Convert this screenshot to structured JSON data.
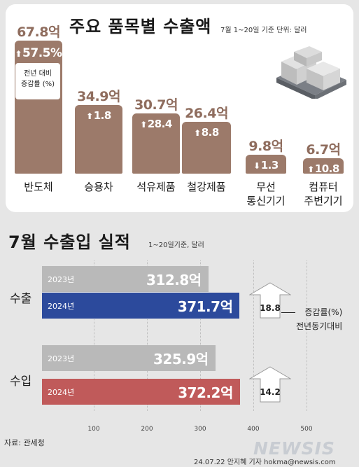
{
  "top_panel": {
    "title": "주요 품목별 수출액",
    "subtitle": "7월 1~20일 기준 단위: 달러",
    "note": "전년 대비\n증감률 (%)"
  },
  "bottom_panel": {
    "title": "7월 수출입 실적",
    "subtitle": "1~20일기준, 달러",
    "legend_note": "증감률(%)\n전년동기대비"
  },
  "chart_data": [
    {
      "type": "bar",
      "title": "주요 품목별 수출액",
      "unit": "달러",
      "categories": [
        "반도체",
        "승용차",
        "석유제품",
        "철강제품",
        "무선\n통신기기",
        "컴퓨터\n주변기기"
      ],
      "values": [
        67.8,
        34.9,
        30.7,
        26.4,
        9.8,
        6.7
      ],
      "value_labels": [
        "67.8억",
        "34.9억",
        "30.7억",
        "26.4억",
        "9.8억",
        "6.7억"
      ],
      "yoy_change_pct": [
        57.5,
        1.8,
        28.4,
        8.8,
        -1.3,
        10.8
      ],
      "yoy_labels": [
        "57.5%",
        "1.8",
        "28.4",
        "8.8",
        "1.3",
        "10.8"
      ],
      "colors": {
        "bar": "#9c7a6a",
        "value_text": "#8f6d5e"
      }
    },
    {
      "type": "bar",
      "orientation": "horizontal",
      "title": "7월 수출입 실적",
      "unit": "억 달러",
      "xlim": [
        0,
        500
      ],
      "xticks": [
        100,
        200,
        300,
        400,
        500
      ],
      "grid": true,
      "groups": [
        {
          "name": "수출",
          "bars": [
            {
              "year": "2023년",
              "value": 312.8,
              "label": "312.8억",
              "color": "#b9b9b9"
            },
            {
              "year": "2024년",
              "value": 371.7,
              "label": "371.7억",
              "color": "#2c4a9c"
            }
          ],
          "change_pct": 18.8,
          "change_label": "18.8"
        },
        {
          "name": "수입",
          "bars": [
            {
              "year": "2023년",
              "value": 325.9,
              "label": "325.9억",
              "color": "#b9b9b9"
            },
            {
              "year": "2024년",
              "value": 372.2,
              "label": "372.2억",
              "color": "#c05a5a"
            }
          ],
          "change_pct": 14.2,
          "change_label": "14.2"
        }
      ]
    }
  ],
  "footer": {
    "source": "자료: 관세청",
    "watermark": "NEWSIS",
    "credit": "24.07.22 안지혜 기자 hokma@newsis.com"
  }
}
